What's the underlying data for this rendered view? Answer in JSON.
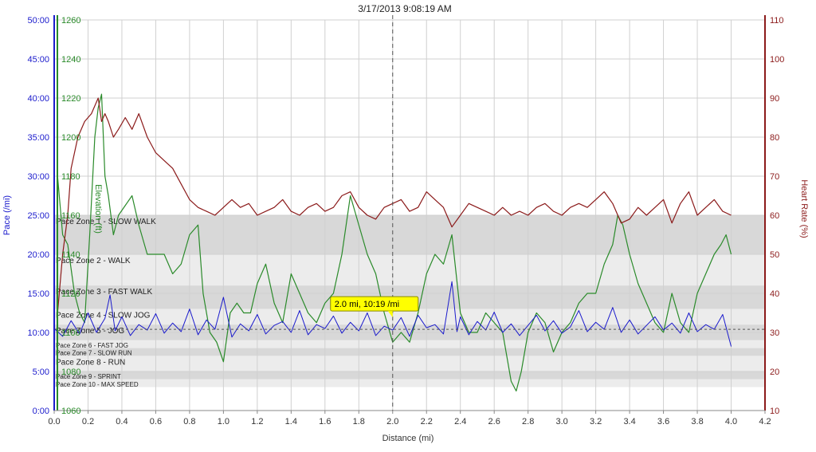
{
  "window": {
    "title": "3/17/2013 9:08:19 AM"
  },
  "tooltip": {
    "text": "2.0 mi, 10:19 /mi"
  },
  "colors": {
    "pace": "#1a1acc",
    "elevation": "#2a8a2a",
    "heart_rate": "#8b1a1a",
    "zone_gray": "#d8d8d8",
    "zone_light": "#ececec",
    "tooltip_bg": "#ffff00",
    "cursor": "#555555"
  },
  "chart_data": {
    "type": "line",
    "title": "3/17/2013 9:08:19 AM",
    "xlabel": "Distance (mi)",
    "xlim": [
      0,
      4.2
    ],
    "x_ticks": [
      "0.0",
      "0.2",
      "0.4",
      "0.6",
      "0.8",
      "1.0",
      "1.2",
      "1.4",
      "1.6",
      "1.8",
      "2.0",
      "2.2",
      "2.4",
      "2.6",
      "2.8",
      "3.0",
      "3.2",
      "3.4",
      "3.6",
      "3.8",
      "4.0",
      "4.2"
    ],
    "grid": true,
    "cursor_x": 2.0,
    "axes": {
      "pace": {
        "label": "Pace (/mi)",
        "lim": [
          0,
          50
        ],
        "ticks": [
          "0:00",
          "5:00",
          "10:00",
          "15:00",
          "20:00",
          "25:00",
          "30:00",
          "35:00",
          "40:00",
          "45:00",
          "50:00"
        ]
      },
      "elevation": {
        "label": "Elevation (ft)",
        "lim": [
          1060,
          1260
        ],
        "ticks": [
          "1060",
          "1080",
          "1100",
          "1120",
          "1140",
          "1160",
          "1180",
          "1200",
          "1220",
          "1240",
          "1260"
        ]
      },
      "heart_rate": {
        "label": "Heart Rate (%)",
        "lim": [
          10,
          110
        ],
        "ticks": [
          "10",
          "20",
          "30",
          "40",
          "50",
          "60",
          "70",
          "80",
          "90",
          "100",
          "110"
        ]
      }
    },
    "pace_zones": [
      {
        "label": "Pace Zone 1 - SLOW WALK",
        "from": 20,
        "to": 25,
        "shade": "gray"
      },
      {
        "label": "Pace Zone 2 - WALK",
        "from": 16,
        "to": 20,
        "shade": "light"
      },
      {
        "label": "Pace Zone 3 - FAST WALK",
        "from": 13,
        "to": 16,
        "shade": "gray"
      },
      {
        "label": "Pace Zone 4 - SLOW JOG",
        "from": 11,
        "to": 13,
        "shade": "light"
      },
      {
        "label": "Pace Zone 5 - JOG",
        "from": 9,
        "to": 11,
        "shade": "gray"
      },
      {
        "label": "Pace Zone 6 - FAST JOG",
        "from": 8,
        "to": 9,
        "shade": "light"
      },
      {
        "label": "Pace Zone 7 - SLOW RUN",
        "from": 7,
        "to": 8,
        "shade": "gray"
      },
      {
        "label": "Pace Zone 8 - RUN",
        "from": 5,
        "to": 7,
        "shade": "light"
      },
      {
        "label": "Pace Zone 9 - SPRINT",
        "from": 4,
        "to": 5,
        "shade": "gray"
      },
      {
        "label": "Pace Zone 10 - MAX SPEED",
        "from": 3,
        "to": 4,
        "shade": "light"
      }
    ],
    "average_pace": 10.4,
    "series": [
      {
        "name": "Elevation",
        "axis": "elevation",
        "x": [
          0.02,
          0.05,
          0.08,
          0.12,
          0.15,
          0.18,
          0.21,
          0.24,
          0.26,
          0.28,
          0.3,
          0.32,
          0.35,
          0.38,
          0.42,
          0.46,
          0.5,
          0.55,
          0.6,
          0.65,
          0.7,
          0.75,
          0.8,
          0.85,
          0.88,
          0.92,
          0.96,
          1.0,
          1.04,
          1.08,
          1.12,
          1.16,
          1.2,
          1.25,
          1.3,
          1.35,
          1.4,
          1.45,
          1.5,
          1.55,
          1.6,
          1.65,
          1.7,
          1.75,
          1.8,
          1.85,
          1.9,
          1.95,
          2.0,
          2.05,
          2.1,
          2.15,
          2.2,
          2.25,
          2.3,
          2.35,
          2.4,
          2.45,
          2.5,
          2.55,
          2.6,
          2.65,
          2.7,
          2.73,
          2.76,
          2.8,
          2.85,
          2.9,
          2.95,
          3.0,
          3.05,
          3.1,
          3.15,
          3.2,
          3.25,
          3.3,
          3.33,
          3.36,
          3.4,
          3.45,
          3.5,
          3.55,
          3.6,
          3.65,
          3.7,
          3.75,
          3.8,
          3.85,
          3.9,
          3.94,
          3.97,
          4.0
        ],
        "y": [
          1180,
          1150,
          1145,
          1120,
          1110,
          1105,
          1150,
          1200,
          1215,
          1222,
          1180,
          1170,
          1150,
          1160,
          1165,
          1170,
          1155,
          1140,
          1140,
          1140,
          1130,
          1135,
          1150,
          1155,
          1120,
          1100,
          1095,
          1085,
          1110,
          1115,
          1110,
          1110,
          1125,
          1135,
          1115,
          1105,
          1130,
          1120,
          1110,
          1105,
          1115,
          1120,
          1140,
          1170,
          1155,
          1140,
          1130,
          1110,
          1095,
          1100,
          1095,
          1110,
          1130,
          1140,
          1135,
          1150,
          1110,
          1100,
          1100,
          1110,
          1105,
          1100,
          1075,
          1070,
          1080,
          1100,
          1110,
          1105,
          1090,
          1100,
          1105,
          1115,
          1120,
          1120,
          1135,
          1145,
          1160,
          1155,
          1140,
          1125,
          1115,
          1105,
          1100,
          1120,
          1105,
          1100,
          1120,
          1130,
          1140,
          1145,
          1150,
          1140
        ]
      },
      {
        "name": "Heart Rate",
        "axis": "heart_rate",
        "x": [
          0.02,
          0.05,
          0.08,
          0.1,
          0.14,
          0.18,
          0.22,
          0.26,
          0.28,
          0.3,
          0.32,
          0.35,
          0.38,
          0.42,
          0.46,
          0.5,
          0.55,
          0.6,
          0.65,
          0.7,
          0.75,
          0.8,
          0.85,
          0.9,
          0.95,
          1.0,
          1.05,
          1.1,
          1.15,
          1.2,
          1.25,
          1.3,
          1.35,
          1.4,
          1.45,
          1.5,
          1.55,
          1.6,
          1.65,
          1.7,
          1.75,
          1.8,
          1.85,
          1.9,
          1.95,
          2.0,
          2.05,
          2.1,
          2.15,
          2.2,
          2.25,
          2.3,
          2.35,
          2.4,
          2.45,
          2.5,
          2.55,
          2.6,
          2.65,
          2.7,
          2.75,
          2.8,
          2.85,
          2.9,
          2.95,
          3.0,
          3.05,
          3.1,
          3.15,
          3.2,
          3.25,
          3.3,
          3.35,
          3.4,
          3.45,
          3.5,
          3.55,
          3.6,
          3.65,
          3.7,
          3.75,
          3.8,
          3.85,
          3.9,
          3.95,
          4.0
        ],
        "y": [
          35,
          50,
          60,
          72,
          80,
          84,
          86,
          90,
          84,
          86,
          84,
          80,
          82,
          85,
          82,
          86,
          80,
          76,
          74,
          72,
          68,
          64,
          62,
          61,
          60,
          62,
          64,
          62,
          63,
          60,
          61,
          62,
          64,
          61,
          60,
          62,
          63,
          61,
          62,
          65,
          66,
          62,
          60,
          59,
          62,
          63,
          64,
          61,
          62,
          66,
          64,
          62,
          57,
          60,
          63,
          62,
          61,
          60,
          62,
          60,
          61,
          60,
          62,
          63,
          61,
          60,
          62,
          63,
          62,
          64,
          66,
          63,
          58,
          59,
          62,
          60,
          62,
          64,
          58,
          63,
          66,
          60,
          62,
          64,
          61,
          60
        ]
      },
      {
        "name": "Pace",
        "axis": "pace",
        "x": [
          0.0,
          0.05,
          0.1,
          0.15,
          0.2,
          0.25,
          0.3,
          0.33,
          0.36,
          0.4,
          0.45,
          0.5,
          0.55,
          0.6,
          0.65,
          0.7,
          0.75,
          0.8,
          0.85,
          0.9,
          0.95,
          1.0,
          1.05,
          1.1,
          1.15,
          1.2,
          1.25,
          1.3,
          1.35,
          1.4,
          1.45,
          1.5,
          1.55,
          1.6,
          1.65,
          1.7,
          1.75,
          1.8,
          1.85,
          1.9,
          1.95,
          2.0,
          2.05,
          2.1,
          2.15,
          2.2,
          2.25,
          2.3,
          2.35,
          2.38,
          2.4,
          2.45,
          2.5,
          2.55,
          2.6,
          2.65,
          2.7,
          2.75,
          2.8,
          2.85,
          2.9,
          2.95,
          3.0,
          3.05,
          3.1,
          3.15,
          3.2,
          3.25,
          3.3,
          3.35,
          3.4,
          3.45,
          3.5,
          3.55,
          3.6,
          3.65,
          3.7,
          3.75,
          3.8,
          3.85,
          3.9,
          3.95,
          4.0
        ],
        "y": [
          10.5,
          9.5,
          11.5,
          9.8,
          12.5,
          10.0,
          11.8,
          14.8,
          10.2,
          12.0,
          9.6,
          11.0,
          10.3,
          12.4,
          9.9,
          11.2,
          10.1,
          13.0,
          9.7,
          11.6,
          10.4,
          14.5,
          9.4,
          11.1,
          10.2,
          12.3,
          9.8,
          10.9,
          11.4,
          10.0,
          12.8,
          9.7,
          11.0,
          10.5,
          12.1,
          9.9,
          11.3,
          10.2,
          12.5,
          9.6,
          10.8,
          10.3,
          11.9,
          9.5,
          12.2,
          10.6,
          11.0,
          9.8,
          16.5,
          10.1,
          12.0,
          9.7,
          11.4,
          10.3,
          12.6,
          10.0,
          11.1,
          9.6,
          10.9,
          12.2,
          10.2,
          11.5,
          9.9,
          10.7,
          12.8,
          10.1,
          11.3,
          10.4,
          13.2,
          10.0,
          11.6,
          9.8,
          10.9,
          12.0,
          10.3,
          11.2,
          9.9,
          12.5,
          10.1,
          11.0,
          10.4,
          12.3,
          8.2
        ]
      }
    ]
  }
}
